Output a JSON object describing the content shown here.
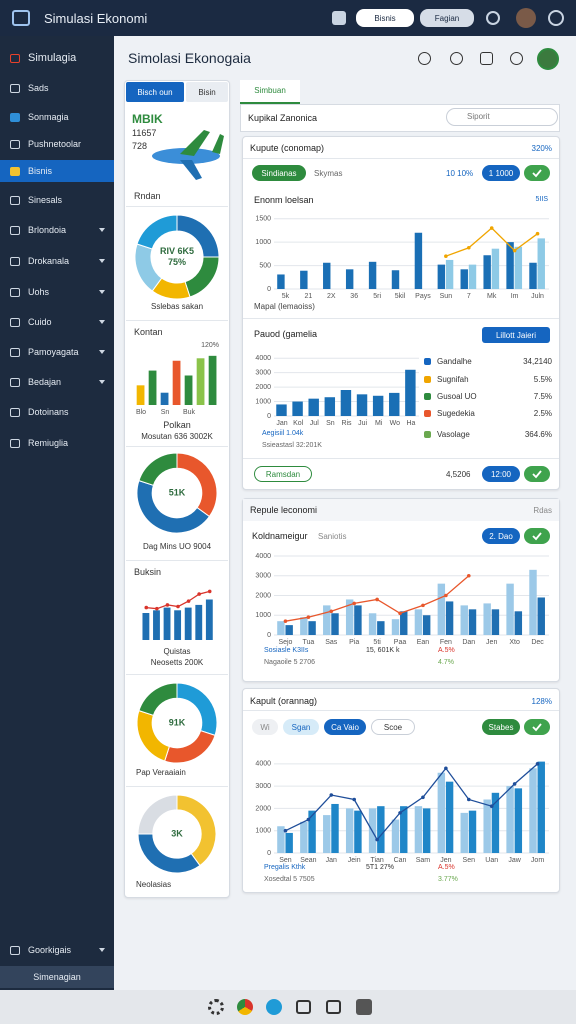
{
  "topbar": {
    "title": "Simulasi Ekonomi",
    "buttons": [
      "Bisnis",
      "Fagian"
    ]
  },
  "sidebar": {
    "brand": "Simulagia",
    "items": [
      "Sads",
      "Sonmagia",
      "Pushnetoolar",
      "Bisnis",
      "Sinesals",
      "Brlondoia",
      "Drokanala",
      "Uohs",
      "Cuido",
      "Pamoyagata",
      "Bedajan",
      "Dotoinans",
      "Remiuglia"
    ],
    "footer": [
      "Goorkigais",
      "Simenagian"
    ]
  },
  "header": {
    "title": "Simolasi Ekonogaia"
  },
  "left_panel": {
    "tabs": [
      "Bisch oun",
      "Bisin"
    ],
    "hero": [
      "MBIK",
      "11657",
      "728"
    ],
    "labels": [
      "Rndan",
      "Sslebas sakan",
      "Kontan",
      "Polkan",
      "Mosutan 636 3002K",
      "Dag Mins UO 9004",
      "Buksin",
      "Quistas",
      "Neosetts 200K",
      "Pap Veraaiain",
      "Neolasias"
    ]
  },
  "right_panel": {
    "tab": "Simbuan",
    "title": "Kupikal Zanonica",
    "search": "Siporit",
    "card1": {
      "title": "Kupute (conomap)",
      "badge": "320%",
      "controls": [
        "Sindianas",
        "Skymas",
        "10 10%",
        "1 1000"
      ],
      "chart_title": "Enonm loelsan",
      "chart_note": "5IIS",
      "chart_caption": "Mapal (lemaoiss)",
      "chart2_title": "Pauod (gamelia",
      "chart2_button": "Lillott Jaieri",
      "legend": [
        [
          "Gandalhe",
          "34,2140"
        ],
        [
          "Sugnifah",
          "5.5%"
        ],
        [
          "Gusoal UO",
          "7.5%"
        ],
        [
          "Sugedekia",
          "2.5%"
        ],
        [
          "Vasolage",
          "364.6%"
        ]
      ],
      "notes": [
        "Aegisiil 1.04k",
        "Ssieastasl 32:201K"
      ],
      "footer": [
        "Ramsdan",
        "4,5206",
        "12:00"
      ]
    },
    "card2": {
      "title": "Repule leconomi",
      "badge": "Rdas",
      "subtitle": "Koldnameigur",
      "subtitle2": "Saniotis",
      "button": "2. Dao",
      "notes": [
        "Sosiasle K3IIs",
        "15, 601K k",
        "A.5%",
        "Nagaoile 5 2706",
        "4.7%"
      ]
    },
    "card3": {
      "title": "Kapult (orannag)",
      "badge": "128%",
      "pills": [
        "Wi",
        "Sgan",
        "Ca Vaio",
        "Scoe"
      ],
      "button": "Stabes",
      "notes": [
        "Pregalis Kthk",
        "5T1 27%",
        "A.5%",
        "Xosedtal 5 7505",
        "3.77%"
      ]
    }
  },
  "chart_data": [
    {
      "type": "donut",
      "values": [
        25,
        20,
        15,
        20,
        20
      ],
      "colors": [
        "#1f6fb2",
        "#2e8b3e",
        "#f2b600",
        "#8ecae6",
        "#1f9bd7"
      ],
      "center_labels": [
        "RIV 6K5",
        "75%"
      ]
    },
    {
      "type": "bar",
      "categories": [
        "Blo",
        null,
        "Sn",
        null,
        "Buk",
        null,
        null
      ],
      "values": [
        40,
        70,
        25,
        90,
        60,
        95,
        100
      ],
      "colors": [
        "#f2b600",
        "#2e8b3e",
        "#1f6fb2",
        "#e8572c",
        "#2e8b3e",
        "#8bc34a",
        "#2e8b3e"
      ],
      "ylim": [
        0,
        120
      ],
      "annotation": "120%"
    },
    {
      "type": "donut",
      "values": [
        35,
        45,
        20
      ],
      "colors": [
        "#e8572c",
        "#1f6fb2",
        "#2e8b3e"
      ],
      "center_labels": [
        "51K"
      ]
    },
    {
      "type": "bar",
      "categories": [
        null,
        null,
        null,
        null,
        null,
        null,
        null
      ],
      "series": [
        {
          "type": "bar",
          "color": "#1f6fb2",
          "values": [
            50,
            55,
            60,
            55,
            60,
            65,
            75
          ]
        },
        {
          "type": "line",
          "color": "#d9342b",
          "values": [
            60,
            58,
            65,
            62,
            72,
            85,
            90
          ]
        }
      ],
      "ylim": [
        0,
        100
      ]
    },
    {
      "type": "donut",
      "values": [
        30,
        25,
        25,
        20
      ],
      "colors": [
        "#1f9bd7",
        "#e8572c",
        "#f2b600",
        "#2e8b3e"
      ],
      "center_labels": [
        "91K"
      ]
    },
    {
      "type": "donut",
      "values": [
        40,
        35,
        25
      ],
      "colors": [
        "#f2c230",
        "#1f6fb2",
        "#d9dde3"
      ],
      "center_labels": [
        "3K"
      ]
    },
    {
      "type": "bar",
      "categories": [
        "5k",
        "21",
        "2X",
        "36",
        "5ri",
        "5kil",
        "Pays",
        "Sun",
        "7",
        "Mk",
        "Im",
        "Juln"
      ],
      "series": [
        {
          "type": "bar",
          "color": "#1a6fb5",
          "values": [
            310,
            390,
            560,
            420,
            580,
            400,
            1200,
            520,
            420,
            720,
            1000,
            560
          ]
        },
        {
          "type": "bar",
          "color": "#8ecae6",
          "values": [
            null,
            null,
            null,
            null,
            null,
            null,
            null,
            620,
            520,
            860,
            900,
            1080
          ]
        },
        {
          "type": "line",
          "color": "#f0a500",
          "values": [
            null,
            null,
            null,
            null,
            null,
            null,
            null,
            700,
            880,
            1300,
            820,
            1180
          ]
        }
      ],
      "ylim": [
        0,
        1600
      ],
      "yticks": [
        0,
        500,
        1000,
        1500
      ],
      "grid": true
    },
    {
      "type": "bar",
      "categories": [
        "Jan",
        "Kol",
        "Jul",
        "Sn",
        "Ris",
        "Jui",
        "Mi",
        "Wo",
        "Ha"
      ],
      "series": [
        {
          "type": "bar",
          "color": "#1a6fb5",
          "values": [
            800,
            1000,
            1200,
            1300,
            1800,
            1500,
            1400,
            1600,
            3200
          ]
        }
      ],
      "ylim": [
        0,
        4500
      ],
      "yticks": [
        0,
        1000,
        2000,
        3000,
        4000
      ],
      "grid": true
    },
    {
      "type": "bar",
      "categories": [
        "Sejo",
        "Tua",
        "Sas",
        "Pia",
        "5ti",
        "Paa",
        "Ean",
        "Fen",
        "Dan",
        "Jen",
        "Xto",
        "Dec"
      ],
      "series": [
        {
          "type": "bar",
          "color": "#9cc9e8",
          "values": [
            700,
            900,
            1500,
            1800,
            1100,
            800,
            1300,
            2600,
            1500,
            1600,
            2600,
            3300
          ]
        },
        {
          "type": "bar",
          "color": "#1f6fb2",
          "values": [
            500,
            700,
            1100,
            1500,
            700,
            1200,
            1000,
            1700,
            1300,
            1300,
            1200,
            1900
          ]
        },
        {
          "type": "line",
          "color": "#e8572c",
          "values": [
            700,
            900,
            1200,
            1600,
            1800,
            1100,
            1500,
            2000,
            3000,
            null,
            null,
            null
          ]
        }
      ],
      "ylim": [
        0,
        4000
      ],
      "yticks": [
        0,
        1000,
        2000,
        3000,
        4000
      ],
      "grid": true
    },
    {
      "type": "bar",
      "categories": [
        "Sen",
        "Sean",
        "Jan",
        "Jein",
        "Tian",
        "Can",
        "Sam",
        "Jen",
        "Sen",
        "Uan",
        "Jaw",
        "Jom"
      ],
      "series": [
        {
          "type": "bar",
          "color": "#9cc9e8",
          "values": [
            1200,
            1400,
            1700,
            2000,
            2000,
            1500,
            2100,
            3600,
            1800,
            2400,
            3000,
            3800
          ]
        },
        {
          "type": "bar",
          "color": "#1f86c8",
          "values": [
            900,
            1900,
            2200,
            1900,
            2100,
            2100,
            2000,
            3200,
            1900,
            2700,
            2900,
            4100
          ]
        },
        {
          "type": "line",
          "color": "#1f4e9a",
          "values": [
            1000,
            1500,
            2600,
            2400,
            600,
            1800,
            2500,
            3800,
            2400,
            2100,
            3100,
            4000
          ]
        }
      ],
      "ylim": [
        0,
        4800
      ],
      "yticks": [
        0,
        1000,
        2000,
        3000,
        4000
      ],
      "grid": true
    }
  ]
}
